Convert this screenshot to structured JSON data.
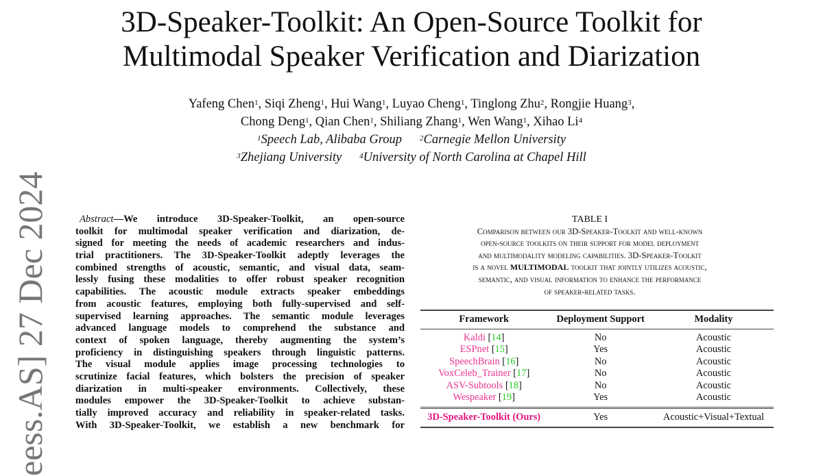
{
  "title": {
    "line1": "3D-Speaker-Toolkit: An Open-Source Toolkit for",
    "line2": "Multimodal Speaker Verification and Diarization"
  },
  "authors": [
    {
      "name": "Yafeng Chen",
      "aff": "1"
    },
    {
      "name": "Siqi Zheng",
      "aff": "1"
    },
    {
      "name": "Hui Wang",
      "aff": "1"
    },
    {
      "name": "Luyao Cheng",
      "aff": "1"
    },
    {
      "name": "Tinglong Zhu",
      "aff": "2"
    },
    {
      "name": "Rongjie Huang",
      "aff": "3"
    },
    {
      "name": "Chong Deng",
      "aff": "1"
    },
    {
      "name": "Qian Chen",
      "aff": "1"
    },
    {
      "name": "Shiliang Zhang",
      "aff": "1"
    },
    {
      "name": "Wen Wang",
      "aff": "1"
    },
    {
      "name": "Xihao Li",
      "aff": "4"
    }
  ],
  "affiliations": [
    {
      "num": "1",
      "name": "Speech Lab, Alibaba Group"
    },
    {
      "num": "2",
      "name": "Carnegie Mellon University"
    },
    {
      "num": "3",
      "name": "Zhejiang University"
    },
    {
      "num": "4",
      "name": "University of North Carolina at Chapel Hill"
    }
  ],
  "watermark": "eess.AS]  27 Dec 2024",
  "abstract": {
    "label": "Abstract",
    "lines": [
      "—We introduce 3D-Speaker-Toolkit, an open-source",
      "toolkit for multimodal speaker verification and diarization, de-",
      "signed for meeting the needs of academic researchers and indus-",
      "trial practitioners. The 3D-Speaker-Toolkit adeptly leverages the",
      "combined strengths of acoustic, semantic, and visual data, seam-",
      "lessly fusing these modalities to offer robust speaker recognition",
      "capabilities. The acoustic module extracts speaker embeddings",
      "from acoustic features, employing both fully-supervised and self-",
      "supervised learning approaches. The semantic module leverages",
      "advanced language models to comprehend the substance and",
      "context of spoken language, thereby augmenting the system’s",
      "proficiency in distinguishing speakers through linguistic patterns.",
      "The visual module applies image processing technologies to",
      "scrutinize facial features, which bolsters the precision of speaker",
      "diarization in multi-speaker environments. Collectively, these",
      "modules empower the 3D-Speaker-Toolkit to achieve substan-",
      "tially improved accuracy and reliability in speaker-related tasks.",
      "With 3D-Speaker-Toolkit, we establish a new benchmark for"
    ]
  },
  "table": {
    "number": "TABLE I",
    "caption_lines": [
      "Comparison between our 3D-Speaker-Toolkit and well-known",
      "open-source toolkits on their support for model deployment",
      "and multimodality modeling capabilities. 3D-Speaker-Toolkit"
    ],
    "caption_line4_pre": "is a novel ",
    "caption_line4_bold": "MULTIMODAL",
    "caption_line4_post": " toolkit that jointly utilizes acoustic,",
    "caption_lines_end": [
      "semantic, and visual information to enhance the performance",
      "of speaker-related tasks."
    ],
    "headers": [
      "Framework",
      "Deployment Support",
      "Modality"
    ],
    "rows": [
      {
        "framework": "Kaldi",
        "ref": "14",
        "deployment": "No",
        "modality": "Acoustic"
      },
      {
        "framework": "ESPnet",
        "ref": "15",
        "deployment": "Yes",
        "modality": "Acoustic"
      },
      {
        "framework": "SpeechBrain",
        "ref": "16",
        "deployment": "No",
        "modality": "Acoustic"
      },
      {
        "framework": "VoxCeleb_Trainer",
        "ref": "17",
        "deployment": "No",
        "modality": "Acoustic"
      },
      {
        "framework": "ASV-Subtools",
        "ref": "18",
        "deployment": "No",
        "modality": "Acoustic"
      },
      {
        "framework": "Wespeaker",
        "ref": "19",
        "deployment": "Yes",
        "modality": "Acoustic"
      }
    ],
    "ours": {
      "framework": "3D-Speaker-Toolkit (Ours)",
      "deployment": "Yes",
      "modality": "Acoustic+Visual+Textual"
    },
    "colors": {
      "framework": "#e8338f",
      "ref": "#22cc22"
    }
  }
}
